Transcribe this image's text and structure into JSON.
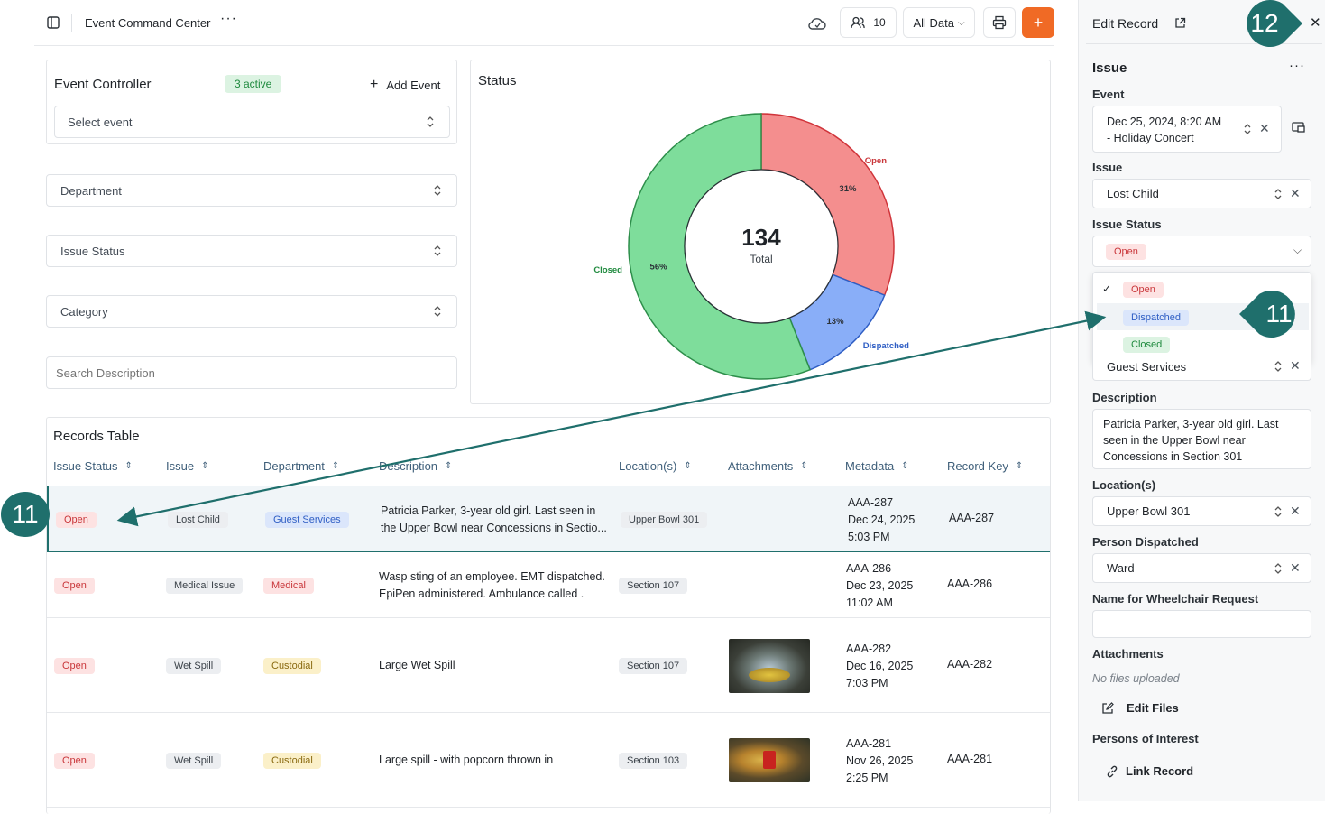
{
  "header": {
    "title": "Event Command Center",
    "users_count": "10",
    "data_filter": "All Data",
    "add_label": "+"
  },
  "controller": {
    "title": "Event Controller",
    "active_badge": "3 active",
    "add_event": "Add Event",
    "select_placeholder": "Select event"
  },
  "filters": {
    "department": "Department",
    "issue_status": "Issue Status",
    "category": "Category",
    "search_placeholder": "Search Description"
  },
  "status_card": {
    "title": "Status",
    "total_value": "134",
    "total_label": "Total"
  },
  "chart_data": {
    "type": "pie",
    "donut": true,
    "title": "Status",
    "slices": [
      {
        "name": "Open",
        "percent": 31,
        "label": "31%",
        "color": "#f48e8e",
        "stroke": "#d0343a",
        "text_color": "#c9363a"
      },
      {
        "name": "Dispatched",
        "percent": 13,
        "label": "13%",
        "color": "#89aef8",
        "stroke": "#2f5ec4",
        "text_color": "#2f5ec4"
      },
      {
        "name": "Closed",
        "percent": 56,
        "label": "56%",
        "color": "#7edd9b",
        "stroke": "#2d8e4a",
        "text_color": "#1f8a3e"
      }
    ],
    "center_value": 134,
    "center_label": "Total"
  },
  "table": {
    "title": "Records Table",
    "columns": [
      "Issue Status",
      "Issue",
      "Department",
      "Description",
      "Location(s)",
      "Attachments",
      "Metadata",
      "Record Key"
    ],
    "rows": [
      {
        "status": "Open",
        "issue": "Lost Child",
        "department": "Guest Services",
        "dept_style": "disp",
        "description": [
          "Patricia Parker, 3-year old girl. Last seen in",
          "the Upper Bowl near Concessions in Sectio..."
        ],
        "location": "Upper Bowl 301",
        "attachment": "",
        "meta": [
          "AAA-287",
          "Dec 24, 2025",
          "5:03 PM"
        ],
        "key": "AAA-287"
      },
      {
        "status": "Open",
        "issue": "Medical Issue",
        "department": "Medical",
        "dept_style": "med",
        "description": [
          "Wasp sting of an employee. EMT dispatched.",
          "EpiPen administered. Ambulance called ."
        ],
        "location": "Section 107",
        "attachment": "",
        "meta": [
          "AAA-286",
          "Dec 23, 2025",
          "11:02 AM"
        ],
        "key": "AAA-286"
      },
      {
        "status": "Open",
        "issue": "Wet Spill",
        "department": "Custodial",
        "dept_style": "cust",
        "description": [
          "Large Wet Spill"
        ],
        "location": "Section 107",
        "attachment": "spill-photo",
        "meta": [
          "AAA-282",
          "Dec 16, 2025",
          "7:03 PM"
        ],
        "key": "AAA-282"
      },
      {
        "status": "Open",
        "issue": "Wet Spill",
        "department": "Custodial",
        "dept_style": "cust",
        "description": [
          "Large spill - with popcorn thrown in"
        ],
        "location": "Section 103",
        "attachment": "popcorn-photo",
        "meta": [
          "AAA-281",
          "Nov 26, 2025",
          "2:25 PM"
        ],
        "key": "AAA-281"
      }
    ]
  },
  "panel": {
    "title": "Edit Record",
    "section": "Issue",
    "event_label": "Event",
    "event_value": [
      "Dec 25, 2024, 8:20 AM",
      "- Holiday Concert"
    ],
    "issue_label": "Issue",
    "issue_value": "Lost Child",
    "status_label": "Issue Status",
    "status_value": "Open",
    "status_options": [
      "Open",
      "Dispatched",
      "Closed"
    ],
    "department_value": "Guest Services",
    "description_label": "Description",
    "description_value": "Patricia Parker, 3-year old girl. Last seen in the Upper Bowl near Concessions in Section 301",
    "location_label": "Location(s)",
    "location_value": "Upper Bowl 301",
    "person_label": "Person Dispatched",
    "person_value": "Ward",
    "wheelchair_label": "Name for Wheelchair Request",
    "attachments_label": "Attachments",
    "no_files": "No files uploaded",
    "edit_files": "Edit Files",
    "persons_label": "Persons of Interest",
    "link_record": "Link Record"
  },
  "callouts": {
    "left": "11",
    "dropdown": "11",
    "close": "12"
  },
  "colors": {
    "accent_orange": "#f06a25",
    "callout": "#1f6f6c",
    "selected_row": "#f0f5f8"
  }
}
